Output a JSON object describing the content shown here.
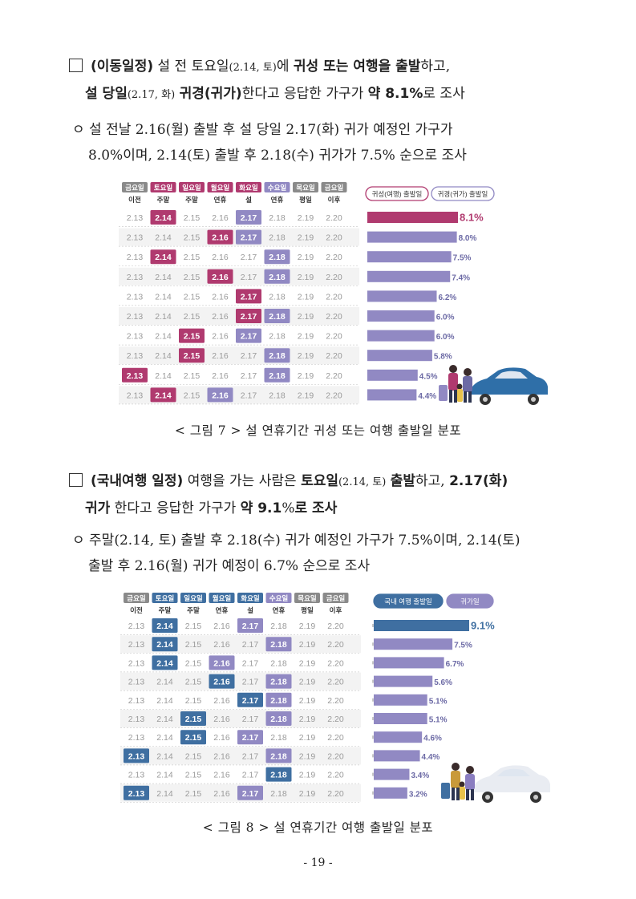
{
  "section1": {
    "bullet_title": "(이동일정)",
    "line1_a": " 설 전 토요일",
    "line1_date": "(2.14, 토)",
    "line1_b": "에 ",
    "line1_bold": "귀성 또는 여행을 출발",
    "line1_c": "하고,",
    "line2_bold1": "설 당일",
    "line2_date": "(2.17, 화)",
    "line2_bold2": "귀경(귀가)",
    "line2_a": "한다고 응답한 가구가 ",
    "line2_bold3": "약 8.1%",
    "line2_b": "로 조사",
    "sub_line1": "ㅇ 설 전날 2.16(월) 출발 후 설 당일 2.17(화) 귀가 예정인 가구가",
    "sub_line2": "8.0%이며, 2.14(토) 출발 후 2.18(수) 귀가가 7.5% 순으로 조사",
    "figure_caption": "< 그림 7 > 설 연휴기간 귀성 또는 여행 출발일 분포"
  },
  "section2": {
    "bullet_title": "(국내여행 일정)",
    "line1_a": " 여행을 가는 사람은 ",
    "line1_bold1": "토요일",
    "line1_date": "(2.14, 토)",
    "line1_bold2": "출발",
    "line1_b": "하고, ",
    "line1_bold3": "2.17(화)",
    "line2_bold1": "귀가",
    "line2_a": " 한다고 응답한 가구가 ",
    "line2_bold2": "약 9.1",
    "line2_pct": "%",
    "line2_bold3": "로 조사",
    "sub_line1": "ㅇ 주말(2.14, 토) 출발 후 2.18(수) 귀가 예정인 가구가 7.5%이며, 2.14(토)",
    "sub_line2": "출발 후 2.16(월) 귀가 예정이 6.7% 순으로 조사",
    "figure_caption": "< 그림 8 > 설 연휴기간 여행 출발일 분포"
  },
  "page_number": "- 19 -",
  "chart_data": [
    {
      "type": "bar",
      "title": "설 연휴기간 귀성 또는 여행 출발일 분포",
      "header_top": [
        "금요일",
        "토요일",
        "일요일",
        "월요일",
        "화요일",
        "수요일",
        "목요일",
        "금요일"
      ],
      "header_bottom": [
        "이전",
        "주말",
        "주말",
        "연휴",
        "설",
        "연휴",
        "평일",
        "이후"
      ],
      "dates": [
        "2.13",
        "2.14",
        "2.15",
        "2.16",
        "2.17",
        "2.18",
        "2.19",
        "2.20"
      ],
      "legend": [
        "귀성(여행) 출발일",
        "귀경(귀가) 출발일"
      ],
      "rows": [
        {
          "depart": "2.14",
          "return": "2.17",
          "value": 8.1,
          "label": "8.1%"
        },
        {
          "depart": "2.16",
          "return": "2.17",
          "value": 8.0,
          "label": "8.0%"
        },
        {
          "depart": "2.14",
          "return": "2.18",
          "value": 7.5,
          "label": "7.5%"
        },
        {
          "depart": "2.16",
          "return": "2.18",
          "value": 7.4,
          "label": "7.4%"
        },
        {
          "depart": "2.17",
          "return": "2.17",
          "value": 6.2,
          "label": "6.2%"
        },
        {
          "depart": "2.17",
          "return": "2.18",
          "value": 6.0,
          "label": "6.0%"
        },
        {
          "depart": "2.15",
          "return": "2.17",
          "value": 6.0,
          "label": "6.0%"
        },
        {
          "depart": "2.15",
          "return": "2.18",
          "value": 5.8,
          "label": "5.8%"
        },
        {
          "depart": "2.13",
          "return": "2.18",
          "value": 4.5,
          "label": "4.5%"
        },
        {
          "depart": "2.14",
          "return": "2.16",
          "value": 4.4,
          "label": "4.4%"
        }
      ],
      "colors": {
        "depart": "#b03a6f",
        "return": "#9189c3",
        "top_bar": "#b03a6f",
        "bar": "#9189c3",
        "legend_border1": "#b03a6f",
        "legend_border2": "#9189c3"
      }
    },
    {
      "type": "bar",
      "title": "설 연휴기간 여행 출발일 분포",
      "header_top": [
        "금요일",
        "토요일",
        "일요일",
        "월요일",
        "화요일",
        "수요일",
        "목요일",
        "금요일"
      ],
      "header_bottom": [
        "이전",
        "주말",
        "주말",
        "연휴",
        "설",
        "연휴",
        "평일",
        "이후"
      ],
      "dates": [
        "2.13",
        "2.14",
        "2.15",
        "2.16",
        "2.17",
        "2.18",
        "2.19",
        "2.20"
      ],
      "legend": [
        "국내 여행 출발일",
        "귀가일"
      ],
      "rows": [
        {
          "depart": "2.14",
          "return": "2.17",
          "value": 9.1,
          "label": "9.1%"
        },
        {
          "depart": "2.14",
          "return": "2.18",
          "value": 7.5,
          "label": "7.5%"
        },
        {
          "depart": "2.14",
          "return": "2.16",
          "value": 6.7,
          "label": "6.7%"
        },
        {
          "depart": "2.16",
          "return": "2.18",
          "value": 5.6,
          "label": "5.6%"
        },
        {
          "depart": "2.17",
          "return": "2.18",
          "value": 5.1,
          "label": "5.1%"
        },
        {
          "depart": "2.15",
          "return": "2.18",
          "value": 5.1,
          "label": "5.1%"
        },
        {
          "depart": "2.15",
          "return": "2.17",
          "value": 4.6,
          "label": "4.6%"
        },
        {
          "depart": "2.13",
          "return": "2.18",
          "value": 4.4,
          "label": "4.4%"
        },
        {
          "depart": "2.18",
          "return": "2.18",
          "value": 3.4,
          "label": "3.4%"
        },
        {
          "depart": "2.13",
          "return": "2.17",
          "value": 3.2,
          "label": "3.2%"
        }
      ],
      "colors": {
        "depart": "#3f6fa1",
        "return": "#9189c3",
        "top_bar": "#3f6fa1",
        "bar": "#9189c3",
        "legend_fill1": "#3f6fa1",
        "legend_fill2": "#9189c3"
      }
    }
  ]
}
